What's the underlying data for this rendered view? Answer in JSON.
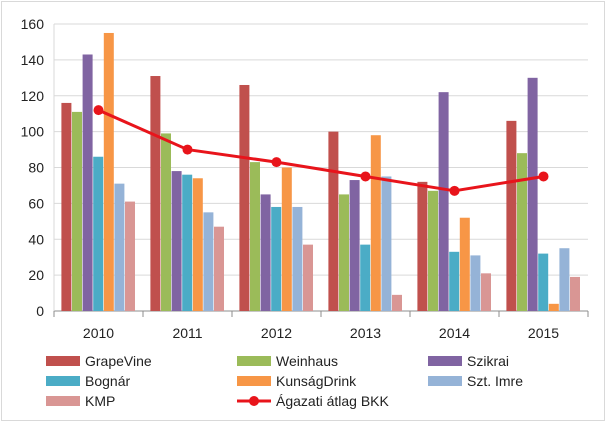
{
  "chart_data": {
    "type": "bar",
    "title": "",
    "xlabel": "",
    "ylabel": "",
    "ylim": [
      0,
      160
    ],
    "yticks": [
      0,
      20,
      40,
      60,
      80,
      100,
      120,
      140,
      160
    ],
    "grid": true,
    "legend_position": "bottom",
    "categories": [
      "2010",
      "2011",
      "2012",
      "2013",
      "2014",
      "2015"
    ],
    "series": [
      {
        "name": "GrapeVine",
        "color": "#C0504D",
        "values": [
          116,
          131,
          126,
          100,
          72,
          106
        ]
      },
      {
        "name": "Weinhaus",
        "color": "#9BBB59",
        "values": [
          111,
          99,
          83,
          65,
          67,
          88
        ]
      },
      {
        "name": "Szikrai",
        "color": "#8064A2",
        "values": [
          143,
          78,
          65,
          73,
          122,
          130
        ]
      },
      {
        "name": "Bognár",
        "color": "#4BACC6",
        "values": [
          86,
          76,
          58,
          37,
          33,
          32
        ]
      },
      {
        "name": "KunságDrink",
        "color": "#F79646",
        "values": [
          155,
          74,
          80,
          98,
          52,
          4
        ]
      },
      {
        "name": "Szt. Imre",
        "color": "#95B3D7",
        "values": [
          71,
          55,
          58,
          75,
          31,
          35
        ]
      },
      {
        "name": "KMP",
        "color": "#D99694",
        "values": [
          61,
          47,
          37,
          9,
          21,
          19
        ]
      }
    ],
    "line_series": {
      "name": "Ágazati átlag BKK",
      "color": "#E8141B",
      "values": [
        112,
        90,
        83,
        75,
        67,
        75
      ]
    }
  }
}
